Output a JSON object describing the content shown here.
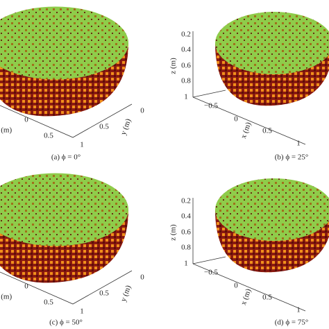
{
  "panels": [
    {
      "caption": "(a) ϕ = 0°",
      "labels": [
        "r (m)",
        "0",
        "0.5",
        "y (m)",
        "0",
        "0.5",
        "1"
      ]
    },
    {
      "caption": "(b) ϕ = 25°",
      "labels": [
        "z (m)",
        "0.2",
        "0.4",
        "0.6",
        "0.8",
        "1",
        "x (m)",
        "−0.5",
        "0",
        "0.5",
        "1"
      ]
    },
    {
      "caption": "(c) ϕ = 50°",
      "labels": [
        "r (m)",
        "0",
        "0.5",
        "y (m)",
        "0",
        "0.5",
        "1"
      ]
    },
    {
      "caption": "(d) ϕ = 75°",
      "labels": [
        "z (m)",
        "0.2",
        "0.4",
        "0.6",
        "0.8",
        "1",
        "x (m)",
        "−0.5",
        "0",
        "0.5",
        "1"
      ]
    }
  ]
}
